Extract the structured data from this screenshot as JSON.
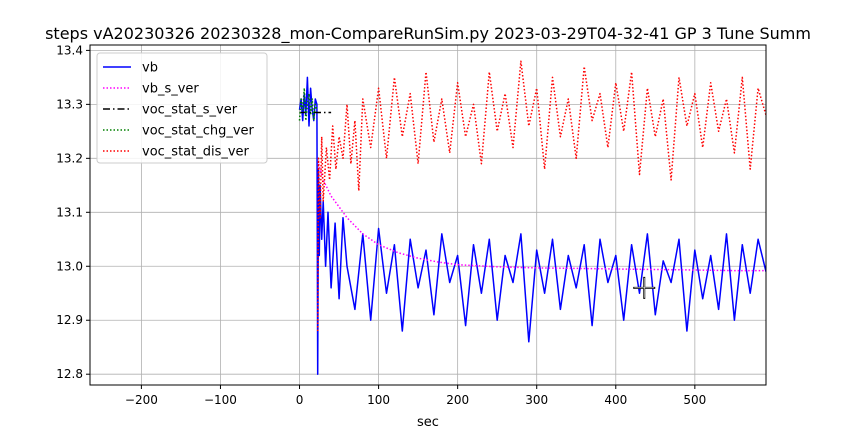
{
  "chart_data": {
    "type": "line",
    "title": "steps vA20230326 20230328_mon-CompareRunSim.py   2023-03-29T04-32-41 GP 3 Tune Summ",
    "xlabel": "sec",
    "ylabel": "",
    "xlim": [
      -265,
      590
    ],
    "ylim": [
      12.78,
      13.41
    ],
    "xticks": [
      -200,
      -100,
      0,
      100,
      200,
      300,
      400,
      500
    ],
    "xtick_labels": [
      "−200",
      "−100",
      "0",
      "100",
      "200",
      "300",
      "400",
      "500"
    ],
    "yticks": [
      12.8,
      12.9,
      13.0,
      13.1,
      13.2,
      13.3,
      13.4
    ],
    "ytick_labels": [
      "12.8",
      "12.9",
      "13.0",
      "13.1",
      "13.2",
      "13.3",
      "13.4"
    ],
    "grid": true,
    "legend_position": "upper-left",
    "series": [
      {
        "name": "vb",
        "color": "#0000ff",
        "style": "solid",
        "x": [
          0,
          2,
          4,
          6,
          8,
          10,
          12,
          14,
          16,
          18,
          20,
          22,
          23,
          24,
          25,
          26,
          28,
          30,
          33,
          36,
          40,
          45,
          50,
          55,
          60,
          70,
          80,
          90,
          100,
          110,
          120,
          130,
          140,
          150,
          160,
          170,
          180,
          190,
          200,
          210,
          220,
          230,
          240,
          250,
          260,
          270,
          280,
          290,
          300,
          310,
          320,
          330,
          340,
          350,
          360,
          370,
          380,
          390,
          400,
          410,
          420,
          430,
          440,
          450,
          460,
          470,
          480,
          490,
          500,
          510,
          520,
          530,
          540,
          550,
          560,
          570,
          580,
          590
        ],
        "y": [
          13.29,
          13.31,
          13.27,
          13.32,
          13.28,
          13.35,
          13.26,
          13.33,
          13.29,
          13.27,
          13.31,
          13.3,
          12.8,
          13.18,
          13.02,
          13.15,
          13.05,
          13.12,
          13.0,
          13.1,
          12.96,
          13.08,
          12.94,
          13.09,
          13.0,
          12.92,
          13.06,
          12.9,
          13.07,
          12.95,
          13.04,
          12.88,
          13.05,
          12.96,
          13.03,
          12.91,
          13.06,
          12.97,
          13.02,
          12.89,
          13.04,
          12.95,
          13.05,
          12.9,
          13.02,
          12.97,
          13.06,
          12.86,
          13.03,
          12.95,
          13.05,
          12.92,
          13.02,
          12.96,
          13.04,
          12.89,
          13.05,
          12.97,
          13.02,
          12.9,
          13.04,
          12.95,
          13.06,
          12.91,
          13.01,
          12.97,
          13.05,
          12.88,
          13.03,
          12.94,
          13.02,
          12.92,
          13.06,
          12.9,
          13.04,
          12.95,
          13.05,
          12.99
        ]
      },
      {
        "name": "vb_s_ver",
        "color": "#ff00ff",
        "style": "dotted",
        "x": [
          24,
          30,
          40,
          50,
          60,
          80,
          100,
          125,
          150,
          175,
          200,
          250,
          300,
          350,
          400,
          450,
          500,
          550,
          590
        ],
        "y": [
          13.19,
          13.16,
          13.13,
          13.11,
          13.09,
          13.06,
          13.04,
          13.025,
          13.015,
          13.008,
          13.003,
          12.999,
          12.997,
          12.996,
          12.995,
          12.994,
          12.993,
          12.992,
          12.992
        ]
      },
      {
        "name": "voc_stat_s_ver",
        "color": "#000000",
        "style": "dashdot",
        "x": [
          0,
          40
        ],
        "y": [
          13.285,
          13.285
        ]
      },
      {
        "name": "voc_stat_chg_ver",
        "color": "#008000",
        "style": "dotted",
        "x": [
          0,
          2,
          4,
          6,
          8,
          10,
          12,
          14,
          16,
          18,
          20,
          22
        ],
        "y": [
          13.27,
          13.31,
          13.29,
          13.33,
          13.27,
          13.3,
          13.32,
          13.28,
          13.31,
          13.27,
          13.3,
          13.29
        ]
      },
      {
        "name": "voc_stat_dis_ver",
        "color": "#ff0000",
        "style": "dotted",
        "x": [
          23,
          24,
          26,
          28,
          30,
          34,
          38,
          42,
          46,
          50,
          55,
          60,
          65,
          70,
          75,
          80,
          90,
          100,
          110,
          120,
          130,
          140,
          150,
          160,
          170,
          180,
          190,
          200,
          210,
          220,
          230,
          240,
          250,
          260,
          270,
          280,
          290,
          300,
          310,
          320,
          330,
          340,
          350,
          360,
          370,
          380,
          390,
          400,
          410,
          420,
          430,
          440,
          450,
          460,
          470,
          480,
          490,
          500,
          510,
          520,
          530,
          540,
          550,
          560,
          570,
          580,
          590
        ],
        "y": [
          12.88,
          13.2,
          13.09,
          13.24,
          13.12,
          13.22,
          13.16,
          13.26,
          13.18,
          13.24,
          13.2,
          13.3,
          13.19,
          13.27,
          13.14,
          13.31,
          13.22,
          13.33,
          13.2,
          13.35,
          13.24,
          13.32,
          13.19,
          13.36,
          13.23,
          13.31,
          13.21,
          13.34,
          13.24,
          13.3,
          13.19,
          13.36,
          13.25,
          13.32,
          13.22,
          13.38,
          13.26,
          13.33,
          13.18,
          13.35,
          13.24,
          13.31,
          13.2,
          13.37,
          13.27,
          13.32,
          13.22,
          13.34,
          13.25,
          13.36,
          13.17,
          13.33,
          13.24,
          13.31,
          13.16,
          13.35,
          13.26,
          13.32,
          13.22,
          13.34,
          13.25,
          13.31,
          13.21,
          13.35,
          13.18,
          13.33,
          13.28
        ]
      }
    ],
    "annotations": [
      {
        "type": "crosshair-marker",
        "x": 436,
        "y": 12.96
      }
    ]
  }
}
